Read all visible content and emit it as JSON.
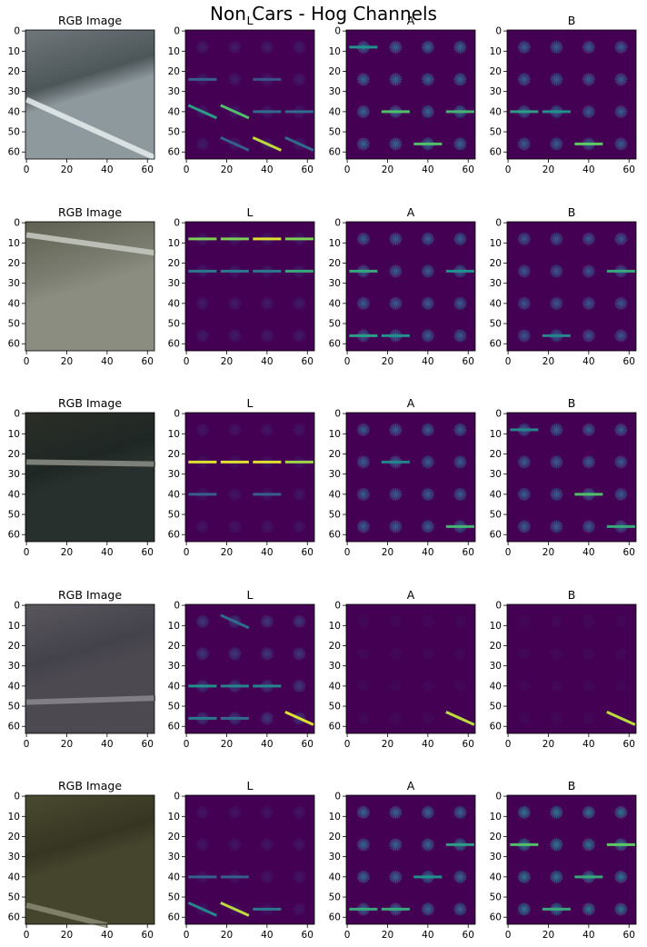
{
  "figure": {
    "suptitle": "Non Cars - Hog Channels",
    "panel_titles": [
      "RGB Image",
      "L",
      "A",
      "B"
    ]
  },
  "colors": {
    "viridis_dark": "#440154",
    "viridis_yellow": "#fde725",
    "viridis_cyan": "#21908c"
  },
  "chart_data": {
    "type": "heatmap",
    "layout": "5 rows x 4 columns of image panels",
    "columns": [
      "RGB Image",
      "L",
      "A",
      "B"
    ],
    "x_ticks": [
      0,
      20,
      40,
      60
    ],
    "y_ticks": [
      0,
      10,
      20,
      30,
      40,
      50,
      60
    ],
    "xlim": [
      -0.5,
      63.5
    ],
    "ylim": [
      63.5,
      -0.5
    ],
    "image_size": [
      64,
      64
    ],
    "hog_cell_centers": [
      8,
      24,
      40,
      56
    ],
    "colormap": "viridis",
    "rows": [
      {
        "rgb": {
          "sky": "#6f777a",
          "road": "#8e999d",
          "dark": "#4d5659",
          "lane": "#e8eef0"
        },
        "L": {
          "level": 0.15,
          "strong": [
            [
              0,
              2,
              0.55,
              "d"
            ],
            [
              1,
              2,
              0.7,
              "d"
            ],
            [
              2,
              2,
              0.35,
              "h"
            ],
            [
              3,
              2,
              0.35,
              "h"
            ],
            [
              2,
              3,
              0.9,
              "d"
            ],
            [
              1,
              3,
              0.3,
              "d"
            ],
            [
              3,
              3,
              0.35,
              "d"
            ],
            [
              0,
              1,
              0.3,
              "h"
            ],
            [
              2,
              1,
              0.25,
              "h"
            ]
          ]
        },
        "A": {
          "level": 0.55,
          "strong": [
            [
              1,
              2,
              0.7,
              "h"
            ],
            [
              3,
              2,
              0.65,
              "h"
            ],
            [
              2,
              3,
              0.7,
              "h"
            ],
            [
              0,
              0,
              0.5,
              "h"
            ]
          ]
        },
        "B": {
          "level": 0.5,
          "strong": [
            [
              2,
              3,
              0.75,
              "h"
            ],
            [
              0,
              2,
              0.55,
              "h"
            ],
            [
              1,
              2,
              0.5,
              "h"
            ]
          ]
        }
      },
      {
        "rgb": {
          "sky": "#5f6052",
          "road": "#8a8d80",
          "dark": "#7b7e70",
          "lane": "#c9ccc4"
        },
        "L": {
          "level": 0.15,
          "strong": [
            [
              0,
              0,
              0.8,
              "h"
            ],
            [
              1,
              0,
              0.8,
              "h"
            ],
            [
              2,
              0,
              0.95,
              "h"
            ],
            [
              3,
              0,
              0.8,
              "h"
            ],
            [
              0,
              1,
              0.4,
              "h"
            ],
            [
              1,
              1,
              0.4,
              "h"
            ],
            [
              2,
              1,
              0.4,
              "h"
            ],
            [
              3,
              1,
              0.6,
              "h"
            ]
          ]
        },
        "A": {
          "level": 0.5,
          "strong": [
            [
              0,
              1,
              0.6,
              "h"
            ],
            [
              0,
              3,
              0.55,
              "h"
            ],
            [
              1,
              3,
              0.5,
              "h"
            ],
            [
              3,
              1,
              0.5,
              "h"
            ]
          ]
        },
        "B": {
          "level": 0.45,
          "strong": [
            [
              3,
              1,
              0.6,
              "h"
            ],
            [
              1,
              3,
              0.45,
              "h"
            ]
          ]
        }
      },
      {
        "rgb": {
          "sky": "#2b2e26",
          "road": "#28302d",
          "dark": "#1f2725",
          "lane": "#8e9087"
        },
        "L": {
          "level": 0.12,
          "strong": [
            [
              0,
              1,
              0.95,
              "h"
            ],
            [
              1,
              1,
              0.95,
              "h"
            ],
            [
              2,
              1,
              0.95,
              "h"
            ],
            [
              3,
              1,
              0.85,
              "h"
            ],
            [
              0,
              2,
              0.3,
              "h"
            ],
            [
              2,
              2,
              0.3,
              "h"
            ]
          ]
        },
        "A": {
          "level": 0.5,
          "strong": [
            [
              3,
              3,
              0.65,
              "h"
            ],
            [
              1,
              1,
              0.45,
              "h"
            ]
          ]
        },
        "B": {
          "level": 0.5,
          "strong": [
            [
              2,
              2,
              0.7,
              "h"
            ],
            [
              3,
              3,
              0.6,
              "h"
            ],
            [
              0,
              0,
              0.45,
              "h"
            ]
          ]
        }
      },
      {
        "rgb": {
          "sky": "#5a575d",
          "road": "#4c4950",
          "dark": "#43414a",
          "lane": "#8b898c"
        },
        "L": {
          "level": 0.3,
          "strong": [
            [
              3,
              3,
              0.95,
              "d"
            ],
            [
              0,
              2,
              0.5,
              "h"
            ],
            [
              1,
              2,
              0.45,
              "h"
            ],
            [
              2,
              2,
              0.45,
              "h"
            ],
            [
              1,
              0,
              0.35,
              "d"
            ],
            [
              0,
              3,
              0.4,
              "h"
            ],
            [
              1,
              3,
              0.35,
              "h"
            ]
          ]
        },
        "A": {
          "level": 0.05,
          "strong": [
            [
              3,
              3,
              0.9,
              "d"
            ]
          ]
        },
        "B": {
          "level": 0.05,
          "strong": [
            [
              3,
              3,
              0.9,
              "d"
            ]
          ]
        }
      },
      {
        "rgb": {
          "sky": "#4a4a30",
          "road": "#45452d",
          "dark": "#363522",
          "lane": "#8b8a75"
        },
        "L": {
          "level": 0.12,
          "strong": [
            [
              1,
              3,
              0.9,
              "d"
            ],
            [
              0,
              3,
              0.45,
              "d"
            ],
            [
              2,
              3,
              0.4,
              "h"
            ],
            [
              0,
              2,
              0.3,
              "h"
            ],
            [
              1,
              2,
              0.3,
              "h"
            ]
          ]
        },
        "A": {
          "level": 0.55,
          "strong": [
            [
              0,
              3,
              0.6,
              "h"
            ],
            [
              1,
              3,
              0.6,
              "h"
            ],
            [
              3,
              1,
              0.55,
              "h"
            ],
            [
              2,
              2,
              0.5,
              "h"
            ]
          ]
        },
        "B": {
          "level": 0.65,
          "strong": [
            [
              0,
              1,
              0.7,
              "h"
            ],
            [
              3,
              1,
              0.75,
              "h"
            ],
            [
              1,
              3,
              0.6,
              "h"
            ],
            [
              2,
              2,
              0.6,
              "h"
            ]
          ]
        }
      }
    ]
  }
}
